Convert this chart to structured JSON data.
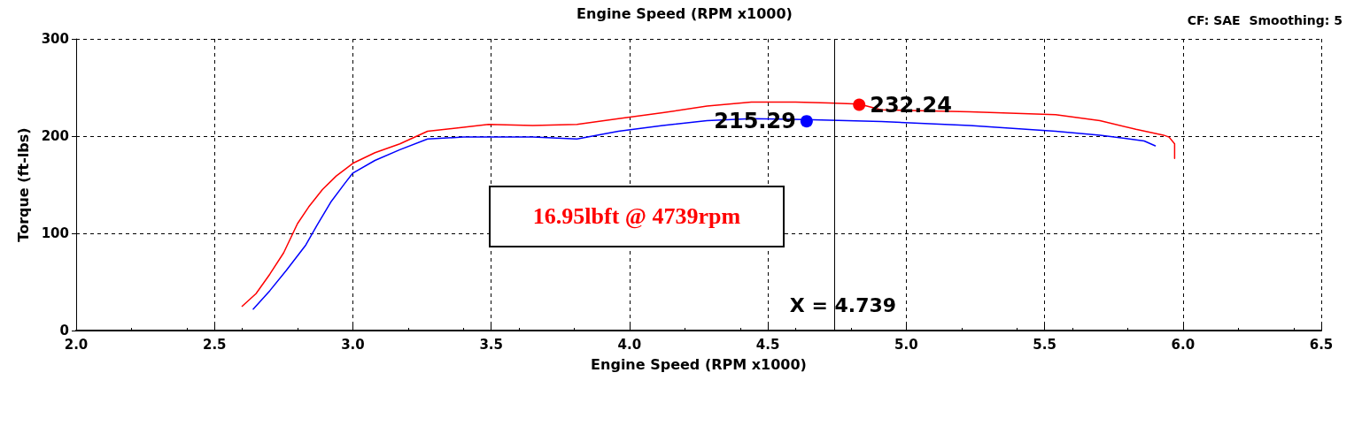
{
  "chart_data": {
    "type": "line",
    "title": "Engine Speed (RPM x1000)",
    "xlabel": "Engine Speed (RPM x1000)",
    "ylabel": "Torque (ft-lbs)",
    "xlim": [
      2.0,
      6.5
    ],
    "xticks": [
      {
        "value": 2,
        "label": "2.0"
      },
      {
        "value": 2.5,
        "label": "2.5"
      },
      {
        "value": 3,
        "label": "3.0"
      },
      {
        "value": 3.5,
        "label": "3.5"
      },
      {
        "value": 4,
        "label": "4.0"
      },
      {
        "value": 4.5,
        "label": "4.5"
      },
      {
        "value": 5,
        "label": "5.0"
      },
      {
        "value": 5.5,
        "label": "5.5"
      },
      {
        "value": 6,
        "label": "6.0"
      },
      {
        "value": 6.5,
        "label": "6.5"
      }
    ],
    "ylim": [
      0,
      300
    ],
    "yticks": [
      0,
      100,
      200,
      300
    ],
    "grid": true,
    "marker": "none",
    "line_style": "solid",
    "series": [
      {
        "color": "#ff0000",
        "x": [
          2.6,
          2.65,
          2.7,
          2.75,
          2.8,
          2.84,
          2.89,
          2.94,
          3.0,
          3.08,
          3.17,
          3.27,
          3.4,
          3.49,
          3.65,
          3.81,
          3.96,
          4.12,
          4.28,
          4.44,
          4.6,
          4.72,
          4.83,
          4.91,
          5.23,
          5.54,
          5.7,
          5.83,
          5.93,
          5.95,
          5.97,
          5.97
        ],
        "values": [
          25,
          38,
          58,
          80,
          110,
          127,
          145,
          159,
          172,
          183,
          192,
          205,
          209,
          212,
          211,
          212,
          218,
          224,
          231,
          235,
          235,
          234,
          233,
          227,
          225,
          222,
          216,
          207,
          201,
          199,
          192,
          177
        ]
      },
      {
        "color": "#0000ff",
        "x": [
          2.64,
          2.7,
          2.76,
          2.83,
          2.87,
          2.92,
          2.97,
          3.0,
          3.08,
          3.17,
          3.27,
          3.4,
          3.65,
          3.81,
          3.96,
          4.12,
          4.28,
          4.44,
          4.63,
          4.91,
          5.23,
          5.54,
          5.7,
          5.86,
          5.9
        ],
        "values": [
          22,
          41,
          62,
          88,
          108,
          132,
          151,
          162,
          175,
          186,
          197,
          199,
          199,
          197,
          205,
          211,
          216,
          218,
          217,
          215,
          211,
          205,
          201,
          195,
          190
        ]
      }
    ],
    "ref_lines": [
      {
        "axis": "x",
        "value": 4.739,
        "label": "X = 4.739",
        "color": "#000000"
      }
    ],
    "annotations": [
      {
        "text": "232.24",
        "x": 4.83,
        "y": 232.24
      },
      {
        "text": "215.29",
        "x": 4.64,
        "y": 215.29
      },
      "16.95lbft @ 4739rpm",
      "CF: SAE  Smoothing: 5"
    ]
  }
}
